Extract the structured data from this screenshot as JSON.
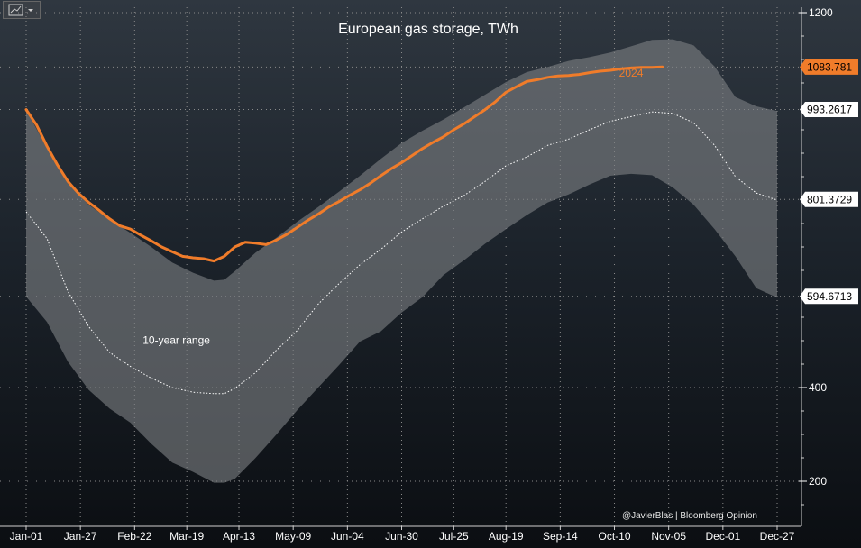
{
  "toolbar": {
    "chart_type_button": "line-chart-icon"
  },
  "colors": {
    "series_2024": "#f07c2a",
    "band_fill": "#7c7f82",
    "average_line": "#ffffff",
    "grid": "#8a8a8a",
    "background_top": "#2f3740",
    "background_bottom": "#0b0e12",
    "tag_2024_bg": "#f07c2a",
    "tag_white_bg": "#ffffff"
  },
  "chart_data": {
    "type": "area",
    "title": "European gas storage, TWh",
    "xlabel": "",
    "ylabel": "",
    "x_axis": {
      "ticks": [
        "Jan-01",
        "Jan-27",
        "Feb-22",
        "Mar-19",
        "Apr-13",
        "May-09",
        "Jun-04",
        "Jun-30",
        "Jul-25",
        "Aug-19",
        "Sep-14",
        "Oct-10",
        "Nov-05",
        "Dec-01",
        "Dec-27"
      ],
      "tick_days": [
        0,
        26,
        52,
        77,
        102,
        128,
        154,
        180,
        205,
        230,
        256,
        282,
        308,
        334,
        360
      ],
      "unit": "day of year"
    },
    "y_axis": {
      "ticks": [
        200,
        400,
        1200
      ],
      "range": [
        110,
        1250
      ],
      "position": "right"
    },
    "grid": true,
    "annotations": [
      {
        "text": "10-year range",
        "x": 72,
        "y": 493
      },
      {
        "text": "2024",
        "x": 290,
        "y": 1063
      }
    ],
    "value_tags": [
      {
        "value": "1083.781",
        "series": "2024"
      },
      {
        "value": "993.2617",
        "series": "10-year max (latest)"
      },
      {
        "value": "801.3729",
        "series": "10-year average (latest)"
      },
      {
        "value": "594.6713",
        "series": "10-year min (latest)"
      }
    ],
    "credit": "@JavierBlas | Bloomberg Opinion",
    "series": [
      {
        "name": "2024",
        "style": "line",
        "x": [
          0,
          5,
          10,
          15,
          20,
          25,
          30,
          35,
          40,
          45,
          50,
          55,
          60,
          65,
          70,
          75,
          80,
          85,
          90,
          95,
          100,
          105,
          110,
          115,
          120,
          125,
          130,
          135,
          140,
          145,
          150,
          155,
          160,
          165,
          170,
          175,
          180,
          185,
          190,
          195,
          200,
          205,
          210,
          215,
          220,
          225,
          230,
          235,
          240,
          245,
          250,
          255,
          260,
          265,
          270,
          275,
          280,
          285,
          290,
          295,
          300,
          305
        ],
        "y": [
          993,
          960,
          915,
          875,
          840,
          815,
          795,
          778,
          760,
          745,
          738,
          725,
          713,
          700,
          690,
          680,
          677,
          675,
          670,
          680,
          700,
          710,
          708,
          705,
          715,
          727,
          742,
          757,
          770,
          785,
          797,
          810,
          822,
          836,
          852,
          867,
          880,
          895,
          910,
          923,
          935,
          950,
          963,
          978,
          993,
          1010,
          1030,
          1042,
          1053,
          1057,
          1062,
          1065,
          1066,
          1068,
          1072,
          1075,
          1077,
          1080,
          1082,
          1083,
          1083,
          1084
        ]
      },
      {
        "name": "10-year range (max)",
        "style": "band-upper",
        "x": [
          0,
          10,
          20,
          30,
          40,
          50,
          60,
          70,
          80,
          90,
          95,
          100,
          110,
          120,
          130,
          140,
          150,
          160,
          170,
          180,
          190,
          200,
          210,
          220,
          230,
          240,
          250,
          260,
          270,
          280,
          290,
          300,
          310,
          320,
          330,
          340,
          350,
          360
        ],
        "y": [
          993,
          910,
          838,
          790,
          758,
          730,
          700,
          667,
          645,
          628,
          630,
          648,
          688,
          720,
          754,
          785,
          818,
          852,
          888,
          922,
          948,
          972,
          998,
          1025,
          1052,
          1073,
          1084,
          1097,
          1105,
          1115,
          1128,
          1142,
          1143,
          1130,
          1085,
          1020,
          1000,
          990
        ]
      },
      {
        "name": "10-year range (min)",
        "style": "band-lower",
        "x": [
          0,
          10,
          20,
          30,
          40,
          50,
          60,
          70,
          80,
          90,
          95,
          100,
          110,
          120,
          130,
          140,
          150,
          160,
          170,
          180,
          190,
          200,
          210,
          220,
          230,
          240,
          250,
          260,
          270,
          280,
          290,
          300,
          310,
          320,
          330,
          340,
          350,
          360
        ],
        "y": [
          594,
          540,
          455,
          395,
          355,
          325,
          280,
          240,
          220,
          197,
          197,
          205,
          250,
          300,
          352,
          400,
          448,
          498,
          520,
          560,
          593,
          640,
          672,
          707,
          738,
          768,
          795,
          812,
          833,
          852,
          856,
          853,
          827,
          790,
          738,
          680,
          612,
          592
        ]
      },
      {
        "name": "10-year average",
        "style": "dotted",
        "x": [
          0,
          10,
          20,
          30,
          40,
          50,
          60,
          70,
          80,
          90,
          95,
          100,
          110,
          120,
          130,
          140,
          150,
          160,
          170,
          180,
          190,
          200,
          210,
          220,
          230,
          240,
          250,
          260,
          270,
          280,
          290,
          300,
          310,
          320,
          330,
          340,
          350,
          360
        ],
        "y": [
          775,
          718,
          605,
          530,
          475,
          445,
          420,
          400,
          390,
          387,
          387,
          398,
          432,
          480,
          522,
          578,
          622,
          662,
          695,
          732,
          760,
          787,
          810,
          840,
          873,
          892,
          917,
          930,
          950,
          968,
          978,
          988,
          985,
          965,
          917,
          850,
          815,
          800
        ]
      }
    ]
  }
}
